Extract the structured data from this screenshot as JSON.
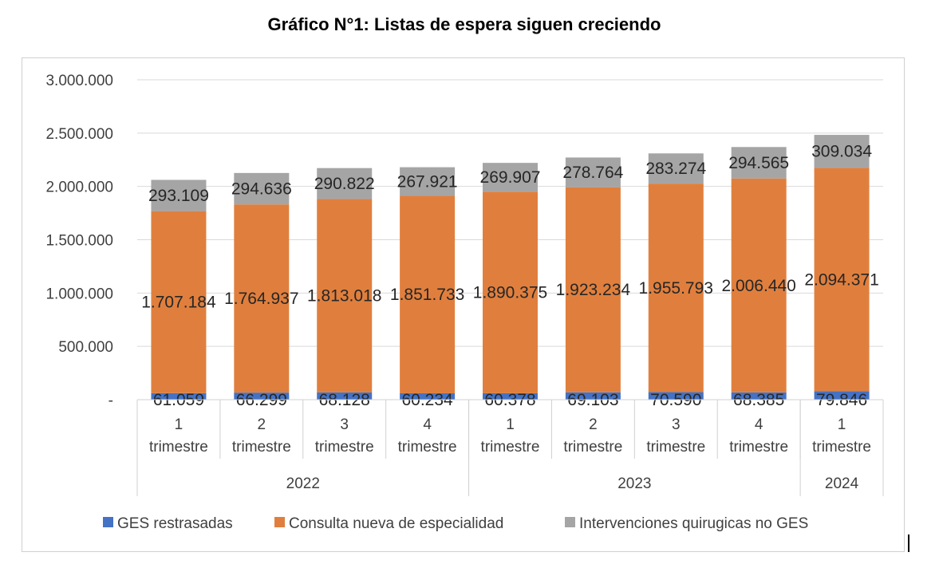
{
  "title": "Gráfico N°1: Listas de espera siguen creciendo",
  "chart_data": {
    "type": "bar",
    "stacked": true,
    "title": "Gráfico N°1: Listas de espera siguen creciendo",
    "xlabel": "",
    "ylabel": "",
    "ylim": [
      0,
      3000000
    ],
    "y_ticks": [
      {
        "value": 0,
        "label": "-"
      },
      {
        "value": 500000,
        "label": "500.000"
      },
      {
        "value": 1000000,
        "label": "1.000.000"
      },
      {
        "value": 1500000,
        "label": "1.500.000"
      },
      {
        "value": 2000000,
        "label": "2.000.000"
      },
      {
        "value": 2500000,
        "label": "2.500.000"
      },
      {
        "value": 3000000,
        "label": "3.000.000"
      }
    ],
    "grid": true,
    "legend_position": "bottom",
    "categories": [
      {
        "num": "1",
        "label": "trimestre"
      },
      {
        "num": "2",
        "label": "trimestre"
      },
      {
        "num": "3",
        "label": "trimestre"
      },
      {
        "num": "4",
        "label": "trimestre"
      },
      {
        "num": "1",
        "label": "trimestre"
      },
      {
        "num": "2",
        "label": "trimestre"
      },
      {
        "num": "3",
        "label": "trimestre"
      },
      {
        "num": "4",
        "label": "trimestre"
      },
      {
        "num": "1",
        "label": "trimestre"
      }
    ],
    "groups": [
      {
        "label": "2022",
        "count": 4
      },
      {
        "label": "2023",
        "count": 4
      },
      {
        "label": "2024",
        "count": 1
      }
    ],
    "series": [
      {
        "name": "GES restrasadas",
        "color": "#4472c4",
        "values": [
          61059,
          66299,
          68128,
          60234,
          60378,
          69103,
          70590,
          68385,
          79846
        ],
        "labels": [
          "61.059",
          "66.299",
          "68.128",
          "60.234",
          "60.378",
          "69.103",
          "70.590",
          "68.385",
          "79.846"
        ]
      },
      {
        "name": "Consulta nueva de especialidad",
        "color": "#e07f3d",
        "values": [
          1707184,
          1764937,
          1813018,
          1851733,
          1890375,
          1923234,
          1955793,
          2006440,
          2094371
        ],
        "labels": [
          "1.707.184",
          "1.764.937",
          "1.813.018",
          "1.851.733",
          "1.890.375",
          "1.923.234",
          "1.955.793",
          "2.006.440",
          "2.094.371"
        ]
      },
      {
        "name": "Intervenciones quirugicas no GES",
        "color": "#a5a5a5",
        "values": [
          293109,
          294636,
          290822,
          267921,
          269907,
          278764,
          283274,
          294565,
          309034
        ],
        "labels": [
          "293.109",
          "294.636",
          "290.822",
          "267.921",
          "269.907",
          "278.764",
          "283.274",
          "294.565",
          "309.034"
        ]
      }
    ]
  }
}
